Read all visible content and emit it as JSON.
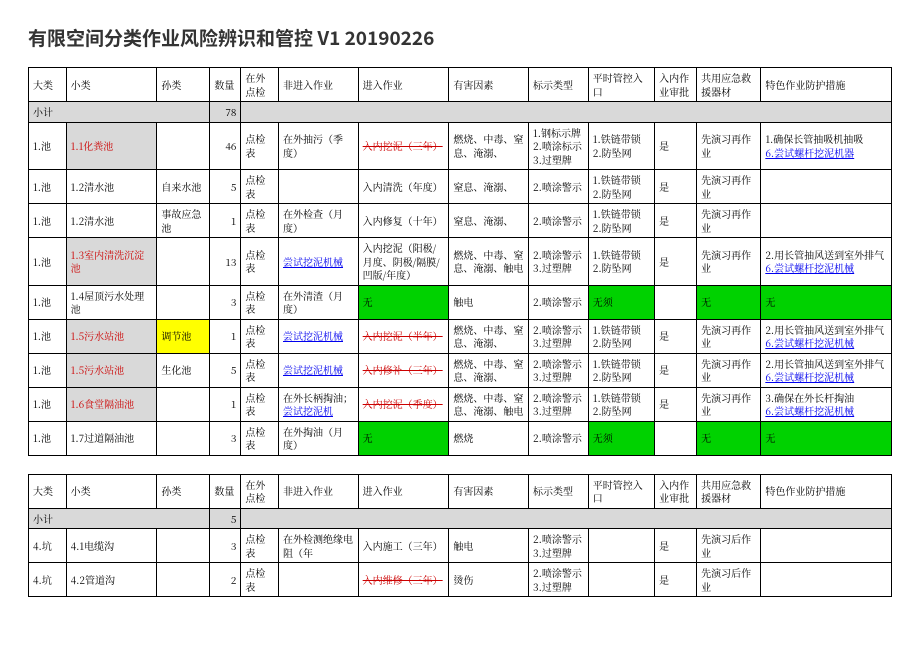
{
  "title": "有限空间分类作业风险辨识和管控 V1 20190226",
  "headers": [
    "大类",
    "小类",
    "孙类",
    "数量",
    "在外点检",
    "非进入作业",
    "进入作业",
    "有害因素",
    "标示类型",
    "平时管控入口",
    "入内作业审批",
    "共用应急救援器材",
    "特色作业防护措施"
  ],
  "subtotal_label": "小计",
  "colors": {
    "grey": "#d9d9d9",
    "green": "#00d200",
    "yellow": "#ffff00",
    "red_text": "#cc0000",
    "link": "#0000ee"
  },
  "table1": {
    "subtotal_qty": "78",
    "rows": [
      {
        "c0": "1.池",
        "c1": {
          "text": "1.1化粪池",
          "cls": "hl-grey red"
        },
        "c2": "",
        "c3": "46",
        "c4": "点检表",
        "c5": "在外抽污（季度）",
        "c6": {
          "text": "入内挖泥（三年）",
          "cls": "red strike"
        },
        "c7": "燃烧、中毒、窒息、淹溺、",
        "c8": "1.钢标示牌\n2.喷涂标示\n3.过塑牌",
        "c9": "1.铁链带锁\n2.防坠网",
        "c10": "是",
        "c11": "先演习再作业",
        "c12a": "1.确保长管抽吸机抽吸",
        "c12b": {
          "text": "6.尝试螺杆挖泥机器",
          "cls": "blue-link"
        }
      },
      {
        "c0": "1.池",
        "c1": "1.2清水池",
        "c2": "自来水池",
        "c3": "5",
        "c4": "点检表",
        "c5": "",
        "c6": "入内清洗（年度）",
        "c7": "窒息、淹溺、",
        "c8": "2.喷涂警示",
        "c9": "1.铁链带锁\n2.防坠网",
        "c10": "是",
        "c11": "先演习再作业",
        "c12a": "",
        "c12b": ""
      },
      {
        "c0": "1.池",
        "c1": "1.2清水池",
        "c2": "事故应急池",
        "c3": "1",
        "c4": "点检表",
        "c5": "在外检查（月度）",
        "c6": "入内修复（十年）",
        "c7": "窒息、淹溺、",
        "c8": "2.喷涂警示",
        "c9": "1.铁链带锁\n2.防坠网",
        "c10": "是",
        "c11": "先演习再作业",
        "c12a": "",
        "c12b": ""
      },
      {
        "c0": "1.池",
        "c1": {
          "text": "1.3室内清洗沉淀池",
          "cls": "hl-grey red"
        },
        "c2": "",
        "c3": "13",
        "c4": "点检表",
        "c5": {
          "text": "尝试挖泥机械",
          "cls": "blue-link"
        },
        "c6": "入内挖泥（阳极/月度、阴极/隔膜/凹版/年度）",
        "c7": "燃烧、中毒、窒息、淹溺、触电",
        "c8": "2.喷涂警示\n3.过塑牌",
        "c9": "1.铁链带锁\n2.防坠网",
        "c10": "是",
        "c11": "先演习再作业",
        "c12a": "2.用长管抽风送到室外排气",
        "c12b": {
          "text": "6.尝试螺杆挖泥机械",
          "cls": "blue-link"
        }
      },
      {
        "c0": "1.池",
        "c1": "1.4屋顶污水处理池",
        "c2": "",
        "c3": "3",
        "c4": "点检表",
        "c5": "在外清渣（月度）",
        "c6": {
          "text": "无",
          "cls": "hl-green"
        },
        "c7": "触电",
        "c8": "2.喷涂警示",
        "c9": {
          "text": "无须",
          "cls": "hl-green"
        },
        "c10": "",
        "c11": {
          "text": "无",
          "cls": "hl-green"
        },
        "c12cell": {
          "text": "无",
          "cls": "hl-green"
        }
      },
      {
        "c0": "1.池",
        "c1": {
          "text": "1.5污水站池",
          "cls": "hl-grey red"
        },
        "c2": {
          "text": "调节池",
          "cls": "hl-yellow"
        },
        "c3": "1",
        "c4": "点检表",
        "c5": {
          "text": "尝试挖泥机械",
          "cls": "blue-link"
        },
        "c6": {
          "text": "入内挖泥（半年）",
          "cls": "red strike"
        },
        "c7": "燃烧、中毒、窒息、淹溺、",
        "c8": "2.喷涂警示\n3.过塑牌",
        "c9": "1.铁链带锁\n2.防坠网",
        "c10": "是",
        "c11": "先演习再作业",
        "c12a": "2.用长管抽风送到室外排气",
        "c12b": {
          "text": "6.尝试螺杆挖泥机械",
          "cls": "blue-link"
        }
      },
      {
        "c0": "1.池",
        "c1": {
          "text": "1.5污水站池",
          "cls": "hl-grey red"
        },
        "c2": "生化池",
        "c3": "5",
        "c4": "点检表",
        "c5": {
          "text": "尝试挖泥机械",
          "cls": "blue-link"
        },
        "c6": {
          "text": "入内修补（三年）",
          "cls": "red strike"
        },
        "c7": "燃烧、中毒、窒息、淹溺、",
        "c8": "2.喷涂警示\n3.过塑牌",
        "c9": "1.铁链带锁\n2.防坠网",
        "c10": "是",
        "c11": "先演习再作业",
        "c12a": "2.用长管抽风送到室外排气",
        "c12b": {
          "text": "6.尝试螺杆挖泥机械",
          "cls": "blue-link"
        }
      },
      {
        "c0": "1.池",
        "c1": {
          "text": "1.6食堂隔油池",
          "cls": "hl-grey red"
        },
        "c2": "",
        "c3": "1",
        "c4": "点检表",
        "c5pre": "在外长柄掏油；",
        "c5link": {
          "text": "尝试挖泥机",
          "cls": "blue-link"
        },
        "c6": {
          "text": "入内挖泥（季度）",
          "cls": "red strike"
        },
        "c7": "燃烧、中毒、窒息、淹溺、触电",
        "c8": "2.喷涂警示\n3.过塑牌",
        "c9": "1.铁链带锁\n2.防坠网",
        "c10": "是",
        "c11": "先演习再作业",
        "c12a": "3.确保在外长杆掏油",
        "c12b": {
          "text": "6.尝试螺杆挖泥机械",
          "cls": "blue-link"
        }
      },
      {
        "c0": "1.池",
        "c1": "1.7过道隔油池",
        "c2": "",
        "c3": "3",
        "c4": "点检表",
        "c5": "在外掏油（月度）",
        "c6": {
          "text": "无",
          "cls": "hl-green"
        },
        "c7": "燃烧",
        "c8": "2.喷涂警示",
        "c9": {
          "text": "无须",
          "cls": "hl-green"
        },
        "c10": "",
        "c11": {
          "text": "无",
          "cls": "hl-green"
        },
        "c12cell": {
          "text": "无",
          "cls": "hl-green"
        }
      }
    ]
  },
  "table2": {
    "subtotal_qty": "5",
    "rows": [
      {
        "c0": "4.坑",
        "c1": "4.1电缆沟",
        "c2": "",
        "c3": "3",
        "c4": "点检表",
        "c5": "在外检测绝缘电阻（年",
        "c6": "入内施工（三年）",
        "c7": "触电",
        "c8": "2.喷涂警示\n3.过塑牌",
        "c9": "",
        "c10": "是",
        "c11": "先演习后作业",
        "c12a": "",
        "c12b": ""
      },
      {
        "c0": "4.坑",
        "c1": "4.2管道沟",
        "c2": "",
        "c3": "2",
        "c4": "点检表",
        "c5": "",
        "c6": {
          "text": "入内维修（三年）",
          "cls": "red strike"
        },
        "c7": "烫伤",
        "c8": "2.喷涂警示\n3.过塑牌",
        "c9": "",
        "c10": "是",
        "c11": "先演习后作业",
        "c12a": "",
        "c12b": ""
      }
    ]
  }
}
